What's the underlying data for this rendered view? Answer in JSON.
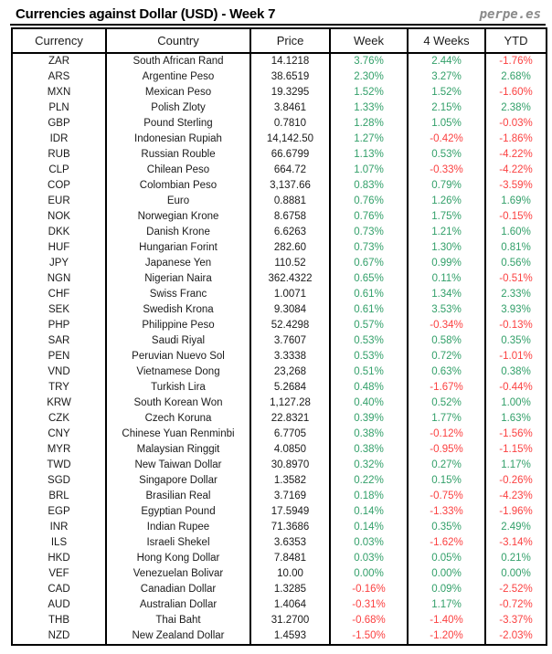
{
  "title": "Currencies against Dollar (USD) - Week 7",
  "brand": "perpe.es",
  "colors": {
    "positive": "#33a06a",
    "negative": "#fb4141",
    "text": "#1a1a1a",
    "border": "#000000"
  },
  "chart_data": {
    "type": "table",
    "title": "Currencies against Dollar (USD) - Week 7",
    "columns": [
      "Currency",
      "Country",
      "Price",
      "Week",
      "4 Weeks",
      "YTD"
    ],
    "rows": [
      [
        "ZAR",
        "South African Rand",
        "14.1218",
        "3.76%",
        "2.44%",
        "-1.76%"
      ],
      [
        "ARS",
        "Argentine Peso",
        "38.6519",
        "2.30%",
        "3.27%",
        "2.68%"
      ],
      [
        "MXN",
        "Mexican Peso",
        "19.3295",
        "1.52%",
        "1.52%",
        "-1.60%"
      ],
      [
        "PLN",
        "Polish Zloty",
        "3.8461",
        "1.33%",
        "2.15%",
        "2.38%"
      ],
      [
        "GBP",
        "Pound Sterling",
        "0.7810",
        "1.28%",
        "1.05%",
        "-0.03%"
      ],
      [
        "IDR",
        "Indonesian Rupiah",
        "14,142.50",
        "1.27%",
        "-0.42%",
        "-1.86%"
      ],
      [
        "RUB",
        "Russian Rouble",
        "66.6799",
        "1.13%",
        "0.53%",
        "-4.22%"
      ],
      [
        "CLP",
        "Chilean Peso",
        "664.72",
        "1.07%",
        "-0.33%",
        "-4.22%"
      ],
      [
        "COP",
        "Colombian Peso",
        "3,137.66",
        "0.83%",
        "0.79%",
        "-3.59%"
      ],
      [
        "EUR",
        "Euro",
        "0.8881",
        "0.76%",
        "1.26%",
        "1.69%"
      ],
      [
        "NOK",
        "Norwegian Krone",
        "8.6758",
        "0.76%",
        "1.75%",
        "-0.15%"
      ],
      [
        "DKK",
        "Danish Krone",
        "6.6263",
        "0.73%",
        "1.21%",
        "1.60%"
      ],
      [
        "HUF",
        "Hungarian Forint",
        "282.60",
        "0.73%",
        "1.30%",
        "0.81%"
      ],
      [
        "JPY",
        "Japanese Yen",
        "110.52",
        "0.67%",
        "0.99%",
        "0.56%"
      ],
      [
        "NGN",
        "Nigerian Naira",
        "362.4322",
        "0.65%",
        "0.11%",
        "-0.51%"
      ],
      [
        "CHF",
        "Swiss Franc",
        "1.0071",
        "0.61%",
        "1.34%",
        "2.33%"
      ],
      [
        "SEK",
        "Swedish Krona",
        "9.3084",
        "0.61%",
        "3.53%",
        "3.93%"
      ],
      [
        "PHP",
        "Philippine Peso",
        "52.4298",
        "0.57%",
        "-0.34%",
        "-0.13%"
      ],
      [
        "SAR",
        "Saudi Riyal",
        "3.7607",
        "0.53%",
        "0.58%",
        "0.35%"
      ],
      [
        "PEN",
        "Peruvian Nuevo Sol",
        "3.3338",
        "0.53%",
        "0.72%",
        "-1.01%"
      ],
      [
        "VND",
        "Vietnamese Dong",
        "23,268",
        "0.51%",
        "0.63%",
        "0.38%"
      ],
      [
        "TRY",
        "Turkish Lira",
        "5.2684",
        "0.48%",
        "-1.67%",
        "-0.44%"
      ],
      [
        "KRW",
        "South Korean Won",
        "1,127.28",
        "0.40%",
        "0.52%",
        "1.00%"
      ],
      [
        "CZK",
        "Czech Koruna",
        "22.8321",
        "0.39%",
        "1.77%",
        "1.63%"
      ],
      [
        "CNY",
        "Chinese Yuan Renminbi",
        "6.7705",
        "0.38%",
        "-0.12%",
        "-1.56%"
      ],
      [
        "MYR",
        "Malaysian Ringgit",
        "4.0850",
        "0.38%",
        "-0.95%",
        "-1.15%"
      ],
      [
        "TWD",
        "New Taiwan Dollar",
        "30.8970",
        "0.32%",
        "0.27%",
        "1.17%"
      ],
      [
        "SGD",
        "Singapore Dollar",
        "1.3582",
        "0.22%",
        "0.15%",
        "-0.26%"
      ],
      [
        "BRL",
        "Brasilian Real",
        "3.7169",
        "0.18%",
        "-0.75%",
        "-4.23%"
      ],
      [
        "EGP",
        "Egyptian Pound",
        "17.5949",
        "0.14%",
        "-1.33%",
        "-1.96%"
      ],
      [
        "INR",
        "Indian Rupee",
        "71.3686",
        "0.14%",
        "0.35%",
        "2.49%"
      ],
      [
        "ILS",
        "Israeli Shekel",
        "3.6353",
        "0.03%",
        "-1.62%",
        "-3.14%"
      ],
      [
        "HKD",
        "Hong Kong Dollar",
        "7.8481",
        "0.03%",
        "0.05%",
        "0.21%"
      ],
      [
        "VEF",
        "Venezuelan Bolivar",
        "10.00",
        "0.00%",
        "0.00%",
        "0.00%"
      ],
      [
        "CAD",
        "Canadian Dollar",
        "1.3285",
        "-0.16%",
        "0.09%",
        "-2.52%"
      ],
      [
        "AUD",
        "Australian Dollar",
        "1.4064",
        "-0.31%",
        "1.17%",
        "-0.72%"
      ],
      [
        "THB",
        "Thai Baht",
        "31.2700",
        "-0.68%",
        "-1.40%",
        "-3.37%"
      ],
      [
        "NZD",
        "New Zealand Dollar",
        "1.4593",
        "-1.50%",
        "-1.20%",
        "-2.03%"
      ]
    ]
  }
}
